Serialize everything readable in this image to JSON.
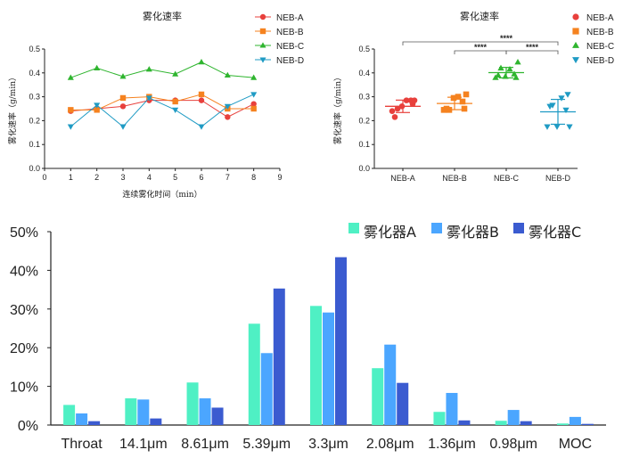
{
  "chart_data": [
    {
      "type": "line",
      "title": "雾化速率",
      "xlabel": "连续雾化时间（min）",
      "ylabel": "雾化速率（g/min）",
      "xlim": [
        0,
        9
      ],
      "ylim": [
        0,
        0.5
      ],
      "x_ticks": [
        "0",
        "1",
        "2",
        "3",
        "4",
        "5",
        "6",
        "7",
        "8",
        "9"
      ],
      "y_ticks": [
        "0.0",
        "0.1",
        "0.2",
        "0.3",
        "0.4",
        "0.5"
      ],
      "x": [
        1,
        2,
        3,
        4,
        5,
        6,
        7,
        8
      ],
      "legend_position": "top-right",
      "series": [
        {
          "name": "NEB-A",
          "color": "#e8403c",
          "marker": "circle",
          "values": [
            0.24,
            0.25,
            0.26,
            0.285,
            0.285,
            0.285,
            0.215,
            0.27
          ]
        },
        {
          "name": "NEB-B",
          "color": "#f5821f",
          "marker": "square",
          "values": [
            0.245,
            0.245,
            0.295,
            0.3,
            0.28,
            0.31,
            0.25,
            0.25
          ]
        },
        {
          "name": "NEB-C",
          "color": "#2fb52f",
          "marker": "triangle",
          "values": [
            0.38,
            0.42,
            0.385,
            0.415,
            0.395,
            0.445,
            0.39,
            0.38
          ]
        },
        {
          "name": "NEB-D",
          "color": "#1f9bc4",
          "marker": "tridown",
          "values": [
            0.175,
            0.265,
            0.175,
            0.295,
            0.245,
            0.175,
            0.26,
            0.31
          ]
        }
      ]
    },
    {
      "type": "scatter",
      "title": "雾化速率",
      "ylabel": "雾化速率（g/min）",
      "ylim": [
        0,
        0.5
      ],
      "y_ticks": [
        "0.0",
        "0.1",
        "0.2",
        "0.3",
        "0.4",
        "0.5"
      ],
      "categories": [
        "NEB-A",
        "NEB-B",
        "NEB-C",
        "NEB-D"
      ],
      "legend_position": "top-right",
      "series": [
        {
          "name": "NEB-A",
          "color": "#e8403c",
          "marker": "circle",
          "values": [
            0.24,
            0.25,
            0.26,
            0.285,
            0.285,
            0.285,
            0.215,
            0.27
          ],
          "mean": 0.26,
          "sd": 0.026
        },
        {
          "name": "NEB-B",
          "color": "#f5821f",
          "marker": "square",
          "values": [
            0.245,
            0.245,
            0.295,
            0.3,
            0.28,
            0.31,
            0.25,
            0.25
          ],
          "mean": 0.272,
          "sd": 0.026
        },
        {
          "name": "NEB-C",
          "color": "#2fb52f",
          "marker": "triangle",
          "values": [
            0.38,
            0.42,
            0.385,
            0.415,
            0.395,
            0.445,
            0.39,
            0.38
          ],
          "mean": 0.401,
          "sd": 0.022
        },
        {
          "name": "NEB-D",
          "color": "#1f9bc4",
          "marker": "tridown",
          "values": [
            0.175,
            0.265,
            0.175,
            0.295,
            0.245,
            0.175,
            0.26,
            0.31
          ],
          "mean": 0.237,
          "sd": 0.052
        }
      ],
      "annotations": [
        {
          "from": "NEB-A",
          "to": "NEB-D",
          "label": "****"
        },
        {
          "from": "NEB-B",
          "to": "NEB-C",
          "label": "****"
        },
        {
          "from": "NEB-C",
          "to": "NEB-D",
          "label": "****"
        }
      ]
    },
    {
      "type": "bar",
      "title": "",
      "ylim": [
        0,
        50
      ],
      "y_ticks": [
        "0%",
        "10%",
        "20%",
        "30%",
        "40%",
        "50%"
      ],
      "categories": [
        "Throat",
        "14.1μm",
        "8.61μm",
        "5.39μm",
        "3.3μm",
        "2.08μm",
        "1.36μm",
        "0.98μm",
        "MOC"
      ],
      "legend_position": "top-right",
      "series": [
        {
          "name": "雾化器A",
          "color": "#4ff0c4",
          "values": [
            5.2,
            6.9,
            11.0,
            26.2,
            30.8,
            14.7,
            3.4,
            1.1,
            0.4
          ]
        },
        {
          "name": "雾化器B",
          "color": "#4ba6ff",
          "values": [
            3.0,
            6.6,
            6.9,
            18.6,
            29.1,
            20.8,
            8.3,
            3.9,
            2.1
          ]
        },
        {
          "name": "雾化器C",
          "color": "#3b5bd0",
          "values": [
            1.0,
            1.7,
            4.5,
            35.3,
            43.4,
            10.9,
            1.2,
            1.0,
            0.3
          ]
        }
      ]
    }
  ]
}
